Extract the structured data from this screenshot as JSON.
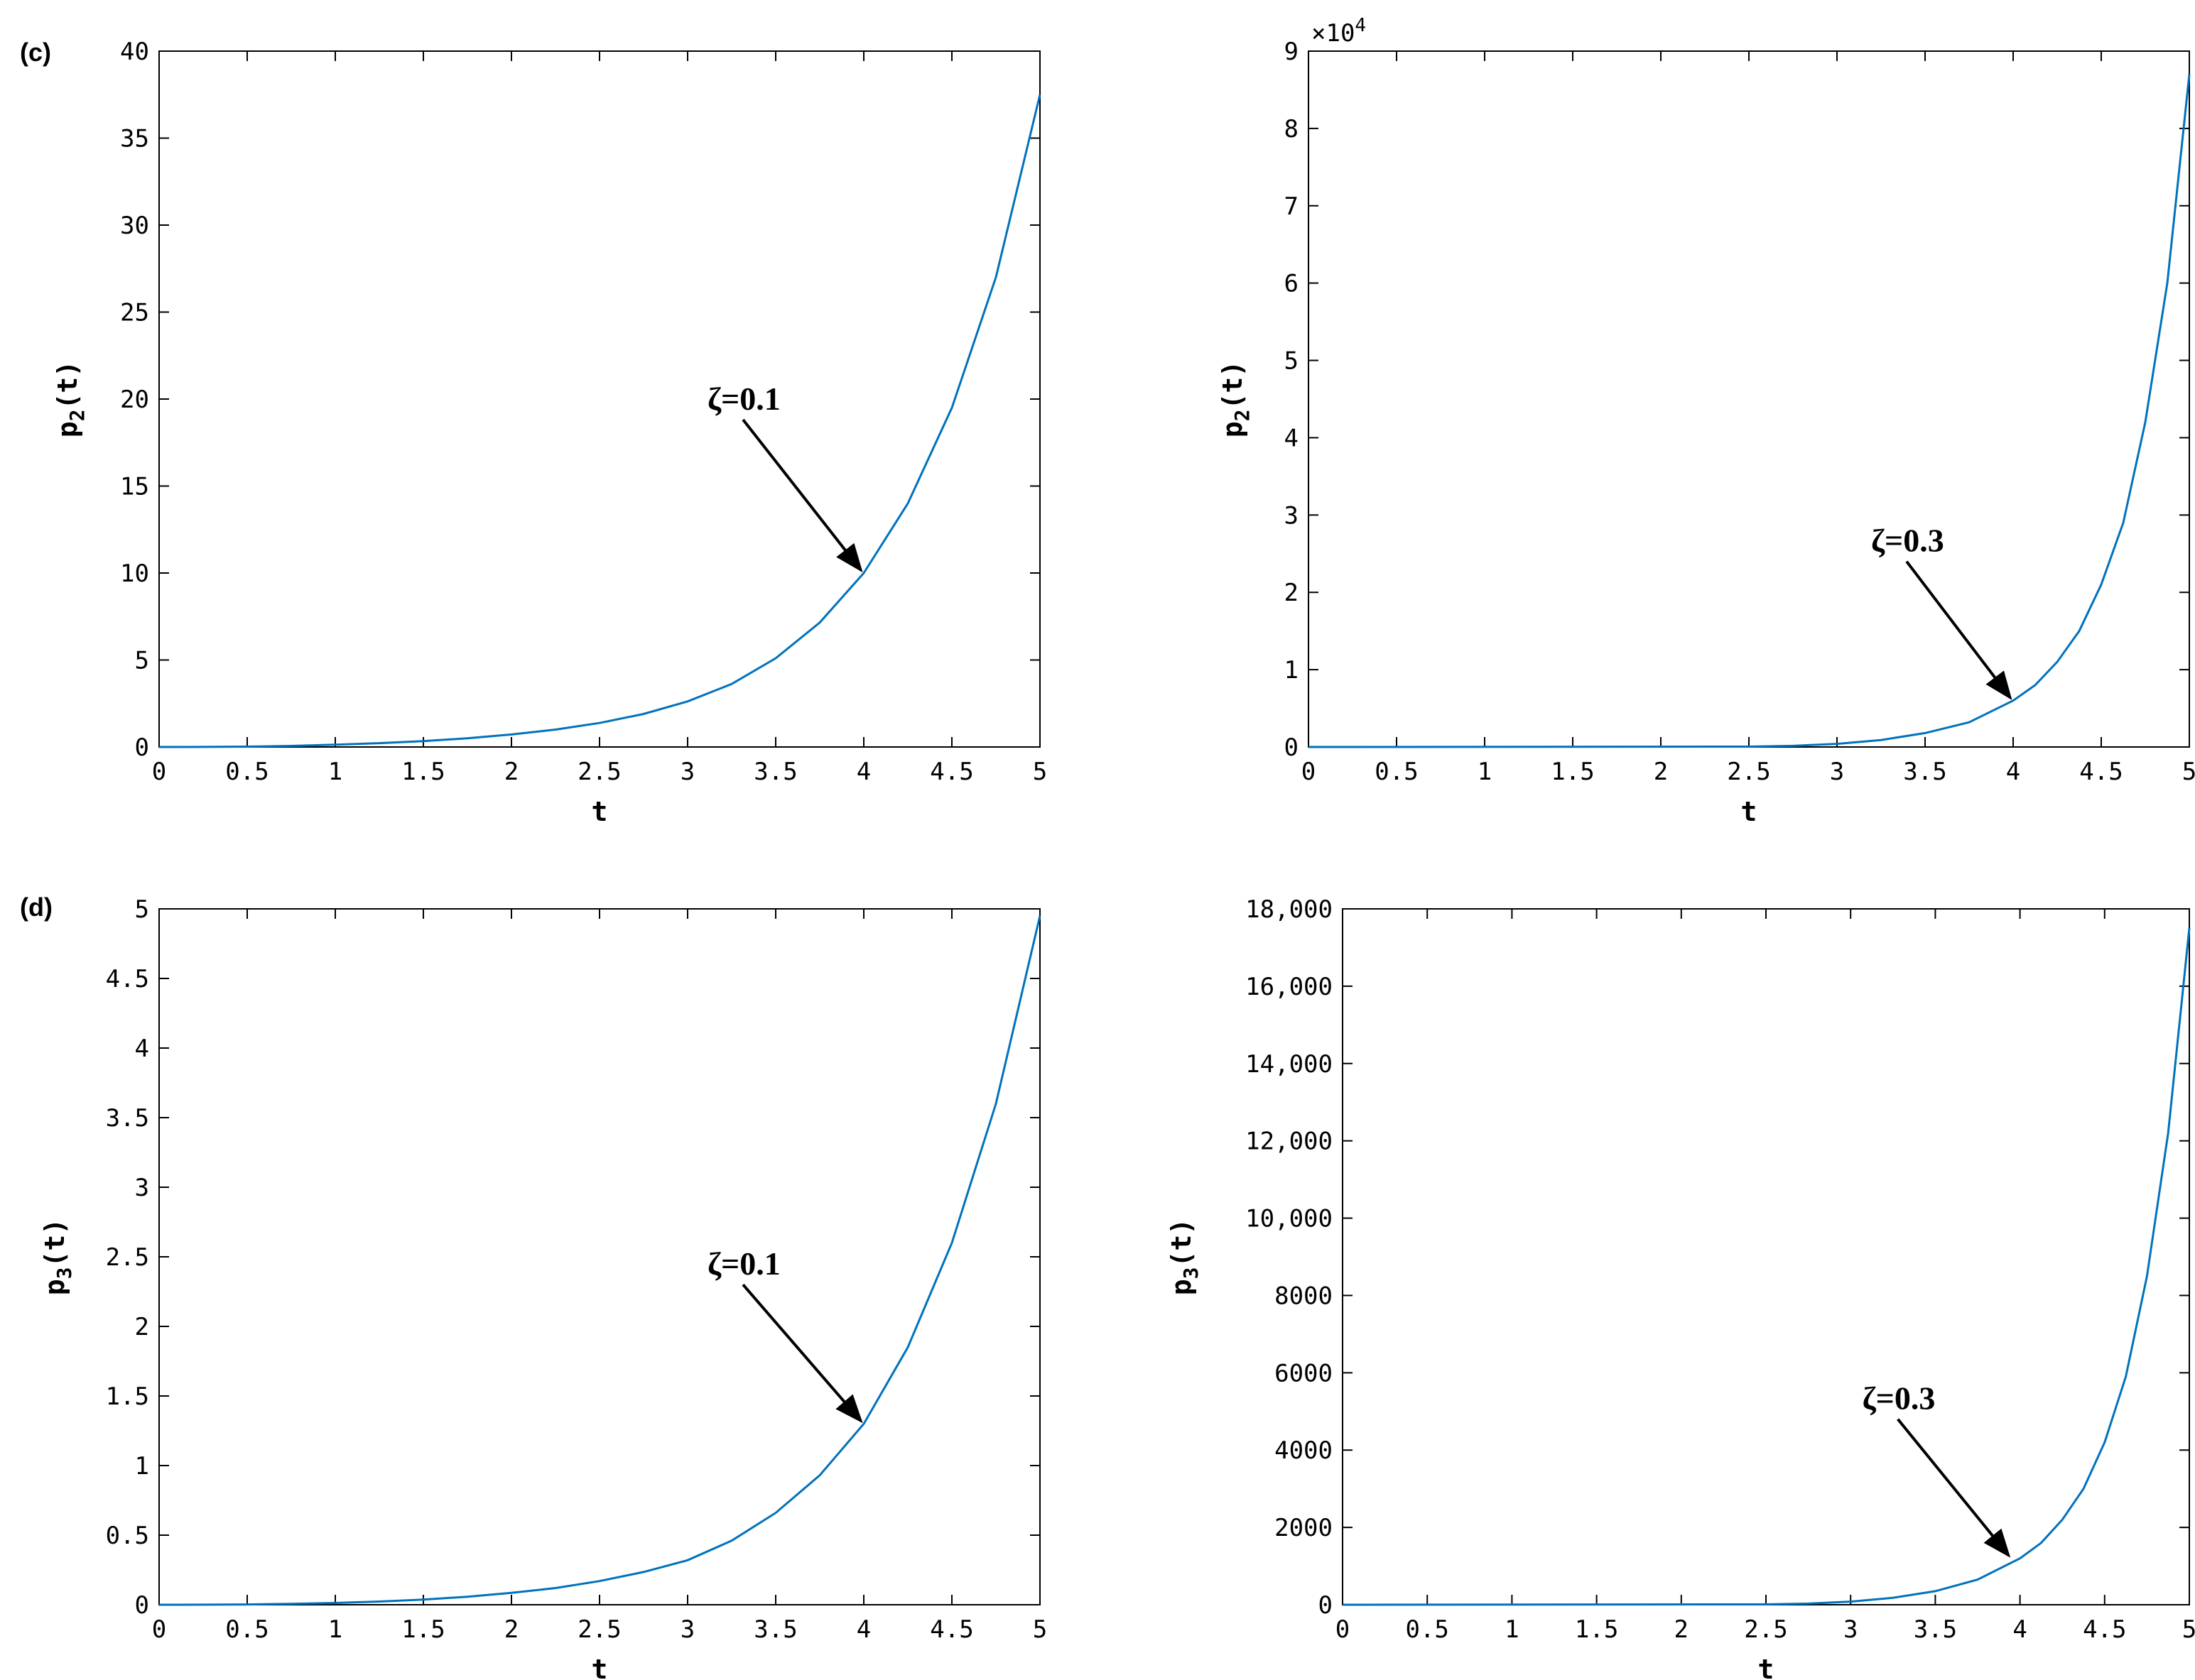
{
  "chart_data": [
    {
      "type": "line",
      "panel_label": "(c)",
      "x": [
        0,
        0.25,
        0.5,
        0.75,
        1,
        1.25,
        1.5,
        1.75,
        2,
        2.25,
        2.5,
        2.75,
        3,
        3.25,
        3.5,
        3.75,
        4,
        4.25,
        4.5,
        4.75,
        5
      ],
      "series": [
        {
          "values": [
            0,
            0.005,
            0.02,
            0.06,
            0.13,
            0.22,
            0.34,
            0.5,
            0.72,
            1.0,
            1.38,
            1.9,
            2.62,
            3.62,
            5.1,
            7.15,
            10.0,
            14.0,
            19.5,
            27.0,
            37.5
          ],
          "color": "#0072BD"
        }
      ],
      "title": "",
      "xlabel": "t",
      "ylabel": "p",
      "ylabel_sub": "2",
      "ylabel_suffix": "(t)",
      "xlim": [
        0,
        5
      ],
      "ylim": [
        0,
        40
      ],
      "xticks": [
        "0",
        "0.5",
        "1",
        "1.5",
        "2",
        "2.5",
        "3",
        "3.5",
        "4",
        "4.5",
        "5"
      ],
      "yticks": [
        "0",
        "5",
        "10",
        "15",
        "20",
        "25",
        "30",
        "35",
        "40"
      ],
      "annotation": {
        "text": "ζ=0.1",
        "arrow_to": [
          4.0,
          10.0
        ]
      }
    },
    {
      "type": "line",
      "panel_label": "",
      "x": [
        0,
        2.5,
        2.75,
        3,
        3.25,
        3.5,
        3.75,
        4,
        4.125,
        4.25,
        4.375,
        4.5,
        4.625,
        4.75,
        4.875,
        5
      ],
      "series": [
        {
          "values": [
            0,
            50,
            150,
            400,
            900,
            1800,
            3200,
            6000,
            8000,
            11000,
            15000,
            21000,
            29000,
            42000,
            60000,
            87000
          ],
          "color": "#0072BD"
        }
      ],
      "title": "",
      "xlabel": "t",
      "ylabel": "p",
      "ylabel_sub": "2",
      "ylabel_suffix": "(t)",
      "exponent_label": "×10",
      "exponent_power": "4",
      "xlim": [
        0,
        5
      ],
      "ylim": [
        0,
        90000
      ],
      "xticks": [
        "0",
        "0.5",
        "1",
        "1.5",
        "2",
        "2.5",
        "3",
        "3.5",
        "4",
        "4.5",
        "5"
      ],
      "yticks": [
        "0",
        "1",
        "2",
        "3",
        "4",
        "5",
        "6",
        "7",
        "8",
        "9"
      ],
      "annotation": {
        "text": "ζ=0.3",
        "arrow_to": [
          4.0,
          6000
        ]
      }
    },
    {
      "type": "line",
      "panel_label": "(d)",
      "x": [
        0,
        0.25,
        0.5,
        0.75,
        1,
        1.25,
        1.5,
        1.75,
        2,
        2.25,
        2.5,
        2.75,
        3,
        3.25,
        3.5,
        3.75,
        4,
        4.25,
        4.5,
        4.75,
        5
      ],
      "series": [
        {
          "values": [
            0,
            0.0005,
            0.002,
            0.006,
            0.013,
            0.023,
            0.037,
            0.057,
            0.085,
            0.12,
            0.17,
            0.235,
            0.32,
            0.46,
            0.66,
            0.93,
            1.3,
            1.85,
            2.6,
            3.6,
            4.95
          ],
          "color": "#0072BD"
        }
      ],
      "title": "",
      "xlabel": "t",
      "ylabel": "p",
      "ylabel_sub": "3",
      "ylabel_suffix": "(t)",
      "xlim": [
        0,
        5
      ],
      "ylim": [
        0,
        5
      ],
      "xticks": [
        "0",
        "0.5",
        "1",
        "1.5",
        "2",
        "2.5",
        "3",
        "3.5",
        "4",
        "4.5",
        "5"
      ],
      "yticks": [
        "0",
        "0.5",
        "1",
        "1.5",
        "2",
        "2.5",
        "3",
        "3.5",
        "4",
        "4.5",
        "5"
      ],
      "annotation": {
        "text": "ζ=0.1",
        "arrow_to": [
          4.0,
          1.3
        ]
      }
    },
    {
      "type": "line",
      "panel_label": "",
      "x": [
        0,
        2.5,
        2.75,
        3,
        3.25,
        3.5,
        3.75,
        4,
        4.125,
        4.25,
        4.375,
        4.5,
        4.625,
        4.75,
        4.875,
        5
      ],
      "series": [
        {
          "values": [
            0,
            10,
            30,
            80,
            180,
            350,
            650,
            1200,
            1600,
            2200,
            3000,
            4200,
            5900,
            8500,
            12200,
            17500
          ],
          "color": "#0072BD"
        }
      ],
      "title": "",
      "xlabel": "t",
      "ylabel": "p",
      "ylabel_sub": "3",
      "ylabel_suffix": "(t)",
      "xlim": [
        0,
        5
      ],
      "ylim": [
        0,
        18000
      ],
      "xticks": [
        "0",
        "0.5",
        "1",
        "1.5",
        "2",
        "2.5",
        "3",
        "3.5",
        "4",
        "4.5",
        "5"
      ],
      "yticks": [
        "0",
        "2000",
        "4000",
        "6000",
        "8000",
        "10,000",
        "12,000",
        "14,000",
        "16,000",
        "18,000"
      ],
      "annotation": {
        "text": "ζ=0.3",
        "arrow_to": [
          3.95,
          1200
        ]
      }
    }
  ]
}
